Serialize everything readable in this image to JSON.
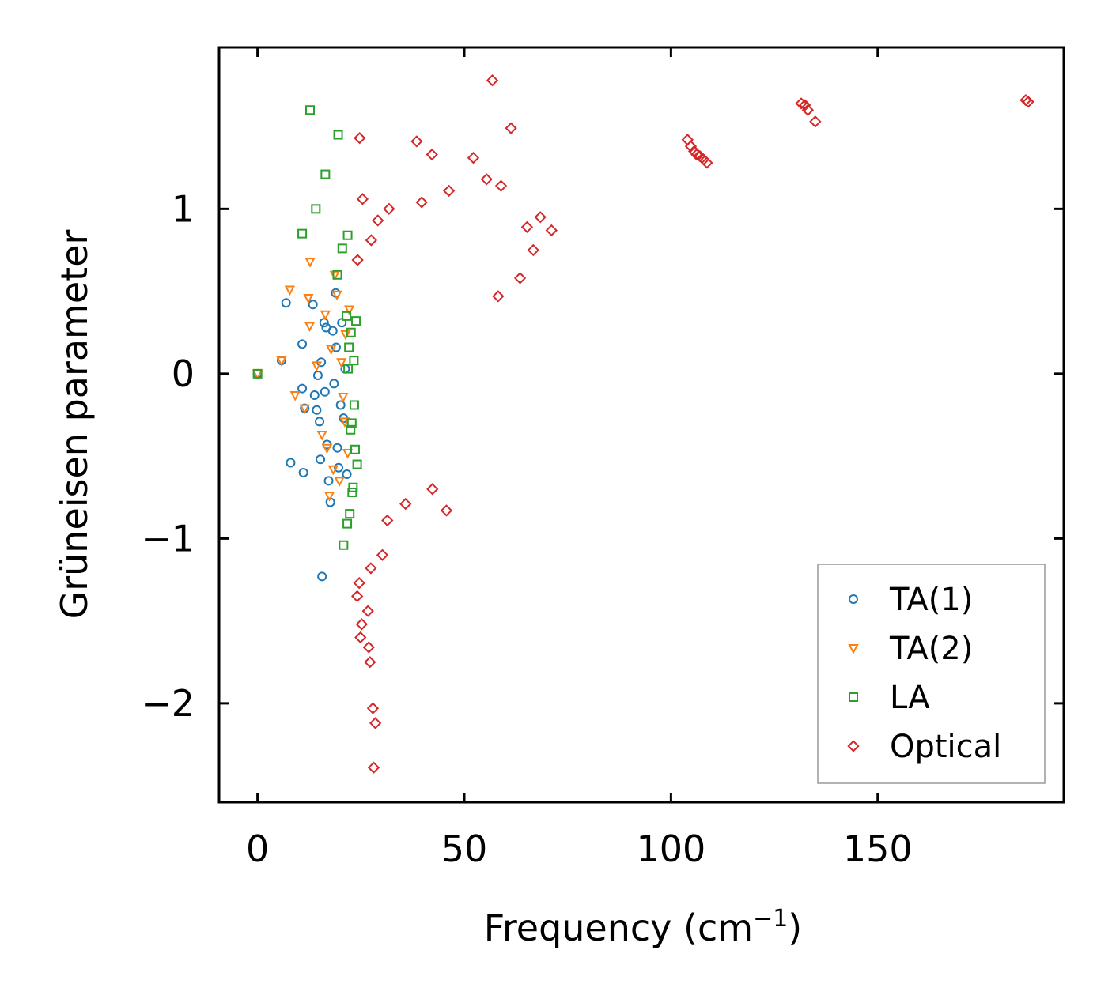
{
  "chart_data": {
    "type": "scatter",
    "title": "",
    "xlabel": "Frequency (cm",
    "xlabel_sup": "−1",
    "xlabel_close": ")",
    "ylabel": "Grüneisen parameter",
    "xlim": [
      -9.3,
      195
    ],
    "ylim": [
      -2.6,
      1.98
    ],
    "xticks": [
      0,
      50,
      100,
      150
    ],
    "xtick_labels": [
      "0",
      "50",
      "100",
      "150"
    ],
    "yticks": [
      -2,
      -1,
      0,
      1
    ],
    "ytick_labels": [
      "−2",
      "−1",
      "0",
      "1"
    ],
    "grid": false,
    "legend_position": "lower-right",
    "series": [
      {
        "name": "TA(1)",
        "marker": "circle",
        "color": "#1f77b4",
        "points": [
          [
            0,
            0
          ],
          [
            5.8,
            0.08
          ],
          [
            6.9,
            0.43
          ],
          [
            8,
            -0.54
          ],
          [
            10.8,
            0.18
          ],
          [
            10.8,
            -0.09
          ],
          [
            11.1,
            -0.6
          ],
          [
            11.4,
            -0.21
          ],
          [
            13.4,
            0.42
          ],
          [
            13.8,
            -0.13
          ],
          [
            14.3,
            -0.22
          ],
          [
            14.6,
            -0.01
          ],
          [
            15,
            -0.29
          ],
          [
            15.2,
            -0.52
          ],
          [
            15.4,
            0.07
          ],
          [
            15.6,
            -1.23
          ],
          [
            16.1,
            0.31
          ],
          [
            16.3,
            -0.11
          ],
          [
            16.6,
            0.28
          ],
          [
            16.8,
            -0.43
          ],
          [
            17.2,
            -0.65
          ],
          [
            17.6,
            -0.78
          ],
          [
            18.2,
            0.26
          ],
          [
            18.5,
            -0.06
          ],
          [
            18.9,
            0.49
          ],
          [
            19,
            0.16
          ],
          [
            19.3,
            -0.45
          ],
          [
            19.6,
            -0.57
          ],
          [
            20.1,
            -0.19
          ],
          [
            20.4,
            0.31
          ],
          [
            20.8,
            -0.27
          ],
          [
            21.2,
            0.03
          ],
          [
            21.6,
            -0.61
          ]
        ]
      },
      {
        "name": "TA(2)",
        "marker": "triangle-down",
        "color": "#ff7f0e",
        "points": [
          [
            0,
            0
          ],
          [
            5.8,
            0.08
          ],
          [
            9.1,
            -0.13
          ],
          [
            7.8,
            0.51
          ],
          [
            11.4,
            -0.21
          ],
          [
            12.3,
            0.46
          ],
          [
            12.7,
            0.68
          ],
          [
            12.6,
            0.29
          ],
          [
            14.3,
            0.05
          ],
          [
            15.6,
            -0.37
          ],
          [
            16.4,
            0.36
          ],
          [
            16.8,
            -0.45
          ],
          [
            17.4,
            -0.74
          ],
          [
            17.8,
            0.15
          ],
          [
            18.3,
            -0.58
          ],
          [
            18.7,
            0.6
          ],
          [
            19.2,
            0.48
          ],
          [
            19.8,
            -0.65
          ],
          [
            20.3,
            0.07
          ],
          [
            20.7,
            -0.14
          ],
          [
            21.1,
            -0.29
          ],
          [
            21.3,
            0.24
          ],
          [
            21.8,
            -0.48
          ],
          [
            22.2,
            0.39
          ]
        ]
      },
      {
        "name": "LA",
        "marker": "square",
        "color": "#2ca02c",
        "points": [
          [
            0,
            0
          ],
          [
            12.7,
            1.6
          ],
          [
            19.5,
            1.45
          ],
          [
            16.4,
            1.21
          ],
          [
            14.1,
            1
          ],
          [
            10.8,
            0.85
          ],
          [
            21.8,
            0.84
          ],
          [
            20.5,
            0.76
          ],
          [
            19.3,
            0.6
          ],
          [
            20.8,
            -1.04
          ],
          [
            21.5,
            0.35
          ],
          [
            22.1,
            0.16
          ],
          [
            22.5,
            -0.34
          ],
          [
            22.9,
            -0.72
          ],
          [
            23.3,
            0.08
          ],
          [
            23.6,
            -0.46
          ],
          [
            22.3,
            -0.85
          ],
          [
            21.7,
            -0.91
          ],
          [
            22.6,
            0.25
          ],
          [
            23.4,
            -0.19
          ],
          [
            24.1,
            -0.55
          ],
          [
            21.9,
            0.03
          ],
          [
            22.8,
            -0.3
          ],
          [
            23.8,
            0.32
          ],
          [
            23.1,
            -0.69
          ]
        ]
      },
      {
        "name": "Optical",
        "marker": "diamond",
        "color": "#d62728",
        "points": [
          [
            56.8,
            1.78
          ],
          [
            61.3,
            1.49
          ],
          [
            24.7,
            1.43
          ],
          [
            38.5,
            1.41
          ],
          [
            42.2,
            1.33
          ],
          [
            52.2,
            1.31
          ],
          [
            55.4,
            1.18
          ],
          [
            58.9,
            1.14
          ],
          [
            46.3,
            1.11
          ],
          [
            25.4,
            1.06
          ],
          [
            39.7,
            1.04
          ],
          [
            31.8,
            1
          ],
          [
            29.1,
            0.93
          ],
          [
            27.5,
            0.81
          ],
          [
            24.2,
            0.69
          ],
          [
            65.2,
            0.89
          ],
          [
            68.4,
            0.95
          ],
          [
            71.1,
            0.87
          ],
          [
            66.7,
            0.75
          ],
          [
            63.5,
            0.58
          ],
          [
            58.2,
            0.47
          ],
          [
            45.7,
            -0.83
          ],
          [
            42.3,
            -0.7
          ],
          [
            35.8,
            -0.79
          ],
          [
            31.4,
            -0.89
          ],
          [
            30.2,
            -1.1
          ],
          [
            27.4,
            -1.18
          ],
          [
            24.6,
            -1.27
          ],
          [
            24.1,
            -1.35
          ],
          [
            26.7,
            -1.44
          ],
          [
            25.2,
            -1.52
          ],
          [
            24.9,
            -1.6
          ],
          [
            26.9,
            -1.66
          ],
          [
            27.2,
            -1.75
          ],
          [
            27.9,
            -2.03
          ],
          [
            28.5,
            -2.12
          ],
          [
            28.1,
            -2.39
          ],
          [
            104,
            1.42
          ],
          [
            104.8,
            1.38
          ],
          [
            105.6,
            1.35
          ],
          [
            106.2,
            1.33
          ],
          [
            107,
            1.32
          ],
          [
            107.9,
            1.3
          ],
          [
            108.7,
            1.28
          ],
          [
            131.5,
            1.64
          ],
          [
            132.4,
            1.63
          ],
          [
            133.1,
            1.6
          ],
          [
            134.9,
            1.53
          ],
          [
            185.8,
            1.66
          ],
          [
            186.4,
            1.65
          ]
        ]
      }
    ]
  }
}
